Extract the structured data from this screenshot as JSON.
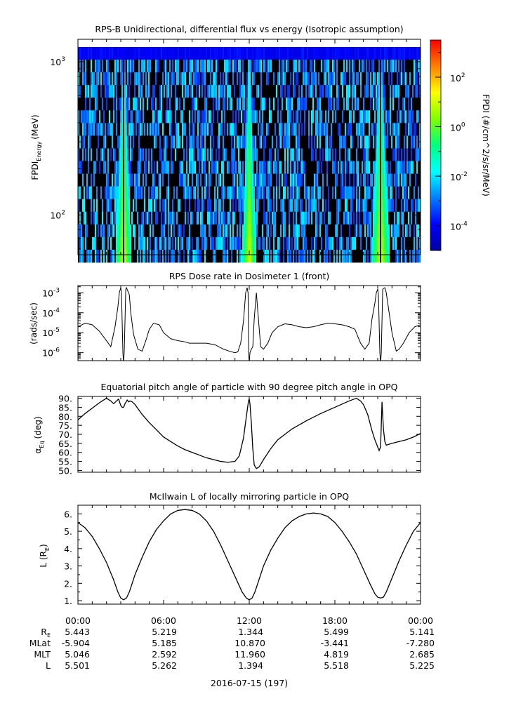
{
  "panels": [
    {
      "title": "RPS-B  Unidirectional, differential flux vs energy (Isotropic assumption)",
      "ylabel_main": "FPDI",
      "ylabel_sub": "Energy",
      "ylabel_unit": "(MeV)",
      "colorbar_label": "FPDI (#/cm^2/s/sr/MeV)",
      "colorbar_ticks": [
        {
          "base": "10",
          "exp": "2",
          "value": 2
        },
        {
          "base": "10",
          "exp": "0",
          "value": 0
        },
        {
          "base": "10",
          "exp": "-2",
          "value": -2
        },
        {
          "base": "10",
          "exp": "-4",
          "value": -4
        }
      ]
    },
    {
      "title": "RPS  Dose rate in Dosimeter 1 (front)",
      "ylabel": "(rads/sec)"
    },
    {
      "title": "Equatorial pitch angle of particle with 90 degree pitch angle in OPQ",
      "ylabel_main": "α",
      "ylabel_sub": "Eq",
      "ylabel_unit": "(deg)"
    },
    {
      "title": "McIlwain L of locally mirroring particle in OPQ",
      "ylabel_main": "L (R",
      "ylabel_sub": "E",
      "ylabel_end": ")"
    }
  ],
  "footer": {
    "date_label": "2016-07-15 (197)",
    "row_labels": [
      {
        "main": "R",
        "sub": "E"
      },
      {
        "main": "MLat",
        "sub": ""
      },
      {
        "main": "MLT",
        "sub": ""
      },
      {
        "main": "L",
        "sub": ""
      }
    ]
  },
  "colors": {
    "colormap": [
      "#0000a0",
      "#0000ff",
      "#0080ff",
      "#00ffff",
      "#00ff80",
      "#80ff00",
      "#ffff00",
      "#ff8000",
      "#ff0000"
    ],
    "line": "#000000"
  },
  "chart_data": [
    {
      "type": "heatmap",
      "title": "RPS-B  Unidirectional, differential flux vs energy (Isotropic assumption)",
      "x_range_hours": [
        0,
        24
      ],
      "ylog": true,
      "ylim": [
        55,
        1400
      ],
      "y_ticks": [
        {
          "base": "10",
          "exp": "2",
          "value": 100
        },
        {
          "base": "10",
          "exp": "3",
          "value": 1000
        }
      ],
      "zlog": true,
      "zlim": [
        -5,
        3.5
      ],
      "peaks": [
        {
          "center_hour": 3.2,
          "half_width_hours": 0.35,
          "gap_hour": 3.2
        },
        {
          "center_hour": 12.0,
          "half_width_hours": 0.3,
          "gap_hour": 12.0
        },
        {
          "center_hour": 21.2,
          "half_width_hours": 0.4,
          "gap_hour": 21.2
        }
      ]
    },
    {
      "type": "line",
      "title": "RPS  Dose rate in Dosimeter 1 (front)",
      "ylabel": "(rads/sec)",
      "ylog": true,
      "ylim": [
        4e-07,
        0.0023
      ],
      "y_ticks": [
        {
          "base": "10",
          "exp": "-3",
          "value": 0.001
        },
        {
          "base": "10",
          "exp": "-4",
          "value": 0.0001
        },
        {
          "base": "10",
          "exp": "-5",
          "value": 1e-05
        },
        {
          "base": "10",
          "exp": "-6",
          "value": 1e-06
        }
      ],
      "x": [
        0.0,
        0.5,
        1.0,
        1.5,
        2.0,
        2.3,
        2.6,
        2.8,
        2.9,
        3.0,
        3.05,
        3.15,
        3.2,
        3.25,
        3.35,
        3.4,
        3.6,
        3.7,
        3.9,
        4.2,
        4.5,
        4.8,
        5.0,
        5.3,
        5.7,
        6.0,
        6.5,
        7.0,
        7.5,
        7.8,
        8.5,
        9.0,
        9.6,
        10.2,
        10.6,
        11.0,
        11.2,
        11.4,
        11.6,
        11.75,
        11.85,
        11.92,
        11.96,
        12.0,
        12.05,
        12.15,
        12.25,
        12.35,
        12.5,
        12.6,
        12.8,
        13.0,
        13.3,
        13.6,
        14.0,
        14.5,
        15.0,
        15.5,
        16.0,
        16.5,
        17.0,
        17.5,
        18.0,
        18.5,
        19.0,
        19.4,
        19.8,
        20.1,
        20.4,
        20.6,
        20.8,
        20.9,
        21.0,
        21.05,
        21.15,
        21.2,
        21.25,
        21.35,
        21.5,
        21.6,
        21.8,
        22.0,
        22.3,
        22.5,
        22.8,
        23.2,
        23.6,
        24.0
      ],
      "values": [
        2e-05,
        3e-05,
        2.5e-05,
        1.2e-05,
        4e-06,
        2e-06,
        2e-05,
        0.0002,
        0.001,
        0.0018,
        0.001,
        1e-06,
        3e-07,
        1.5e-06,
        0.0015,
        0.0018,
        0.0008,
        0.0001,
        8e-06,
        1.5e-06,
        1.2e-06,
        5e-06,
        1.5e-05,
        3e-05,
        2.5e-05,
        1e-05,
        5e-06,
        4e-06,
        3.5e-06,
        3e-06,
        3e-06,
        3e-06,
        2.5e-06,
        1.5e-06,
        1.2e-06,
        1e-06,
        1.1e-06,
        3e-06,
        4e-05,
        0.001,
        0.0018,
        0.001,
        1e-06,
        3e-07,
        1e-06,
        1.5e-06,
        2e-06,
        5e-05,
        0.001,
        0.00012,
        2e-06,
        1.5e-06,
        3e-06,
        1e-05,
        2e-05,
        2.8e-05,
        2.5e-05,
        2e-05,
        1.8e-05,
        2e-05,
        2.5e-05,
        3e-05,
        2.8e-05,
        2.5e-05,
        2e-05,
        1.5e-05,
        3e-06,
        1.5e-06,
        3e-06,
        5e-05,
        0.0003,
        0.001,
        0.0015,
        0.0008,
        1e-06,
        3e-07,
        1e-06,
        0.0015,
        0.0018,
        0.001,
        0.0001,
        1e-05,
        1.2e-06,
        1.5e-06,
        3e-06,
        1e-05,
        2e-05,
        2.5e-05
      ]
    },
    {
      "type": "line",
      "title": "Equatorial pitch angle of particle with 90 degree pitch angle in OPQ",
      "ylim": [
        49,
        91
      ],
      "y_ticks": [
        50,
        55,
        60,
        65,
        70,
        75,
        80,
        85,
        90
      ],
      "x": [
        0.0,
        0.5,
        1.0,
        1.5,
        2.0,
        2.3,
        2.5,
        2.7,
        2.85,
        3.0,
        3.1,
        3.2,
        3.3,
        3.45,
        3.55,
        3.65,
        3.8,
        4.0,
        4.5,
        5.0,
        5.5,
        6.0,
        6.5,
        7.0,
        7.5,
        8.0,
        8.5,
        9.0,
        9.5,
        10.0,
        10.5,
        11.0,
        11.3,
        11.6,
        11.8,
        11.95,
        12.0,
        12.05,
        12.15,
        12.25,
        12.35,
        12.5,
        12.7,
        13.0,
        13.5,
        14.0,
        15.0,
        16.0,
        17.0,
        18.0,
        19.0,
        19.5,
        19.8,
        20.0,
        20.3,
        20.6,
        20.8,
        21.0,
        21.1,
        21.2,
        21.25,
        21.3,
        21.4,
        21.5,
        21.6,
        21.8,
        22.0,
        22.5,
        23.0,
        23.5,
        24.0
      ],
      "values": [
        78.0,
        81.5,
        84.5,
        87.5,
        90.0,
        88.5,
        87.0,
        88.5,
        89.5,
        86.0,
        85.0,
        85.0,
        87.0,
        89.0,
        88.0,
        88.5,
        88.0,
        86.5,
        81.0,
        76.5,
        72.5,
        68.5,
        66.0,
        63.5,
        61.5,
        60.0,
        58.5,
        57.0,
        56.0,
        55.0,
        54.5,
        55.0,
        58.0,
        68.0,
        80.0,
        88.5,
        89.5,
        87.0,
        76.0,
        62.0,
        53.0,
        51.0,
        52.0,
        56.0,
        62.0,
        67.0,
        73.0,
        77.5,
        81.5,
        85.0,
        88.5,
        90.0,
        88.5,
        86.5,
        81.0,
        72.0,
        67.0,
        63.0,
        61.0,
        63.0,
        75.0,
        88.0,
        73.0,
        66.0,
        64.0,
        64.5,
        65.0,
        66.0,
        67.0,
        68.5,
        70.5
      ]
    },
    {
      "type": "line",
      "title": "McIlwain L of locally mirroring particle in OPQ",
      "ylim": [
        0.8,
        6.5
      ],
      "y_ticks": [
        1,
        2,
        3,
        4,
        5,
        6
      ],
      "y_tick_labels": [
        "1.",
        "2.",
        "3.",
        "4.",
        "5.",
        "6."
      ],
      "x": [
        0.0,
        0.5,
        1.0,
        1.5,
        2.0,
        2.5,
        2.8,
        3.0,
        3.2,
        3.4,
        3.6,
        3.8,
        4.0,
        4.5,
        5.0,
        5.5,
        6.0,
        6.5,
        7.0,
        7.5,
        8.0,
        8.5,
        9.0,
        9.5,
        10.0,
        10.5,
        11.0,
        11.5,
        11.8,
        12.0,
        12.2,
        12.4,
        12.6,
        12.8,
        13.0,
        13.5,
        14.0,
        14.5,
        15.0,
        15.5,
        16.0,
        16.5,
        17.0,
        17.5,
        18.0,
        18.5,
        19.0,
        19.5,
        20.0,
        20.5,
        20.8,
        21.0,
        21.2,
        21.4,
        21.6,
        22.0,
        22.5,
        23.0,
        23.5,
        24.0
      ],
      "values": [
        5.5,
        5.2,
        4.7,
        4.0,
        3.2,
        2.2,
        1.5,
        1.15,
        1.05,
        1.15,
        1.5,
        2.0,
        2.5,
        3.5,
        4.4,
        5.1,
        5.6,
        6.0,
        6.2,
        6.25,
        6.2,
        6.0,
        5.6,
        5.0,
        4.2,
        3.3,
        2.4,
        1.5,
        1.15,
        1.05,
        1.15,
        1.5,
        2.0,
        2.5,
        3.0,
        3.9,
        4.6,
        5.2,
        5.6,
        5.85,
        6.0,
        6.05,
        6.0,
        5.85,
        5.5,
        5.0,
        4.4,
        3.7,
        2.8,
        1.9,
        1.4,
        1.2,
        1.15,
        1.2,
        1.5,
        2.3,
        3.3,
        4.2,
        5.0,
        5.5
      ]
    }
  ],
  "ephemeris": {
    "times": [
      "00:00",
      "06:00",
      "12:00",
      "18:00",
      "00:00"
    ],
    "rows": [
      [
        "5.443",
        "5.219",
        "1.344",
        "5.499",
        "5.141"
      ],
      [
        "-5.904",
        "5.185",
        "10.870",
        "-3.441",
        "-7.280"
      ],
      [
        "5.046",
        "2.592",
        "11.960",
        "4.819",
        "2.685"
      ],
      [
        "5.501",
        "5.262",
        "1.394",
        "5.518",
        "5.225"
      ]
    ]
  }
}
